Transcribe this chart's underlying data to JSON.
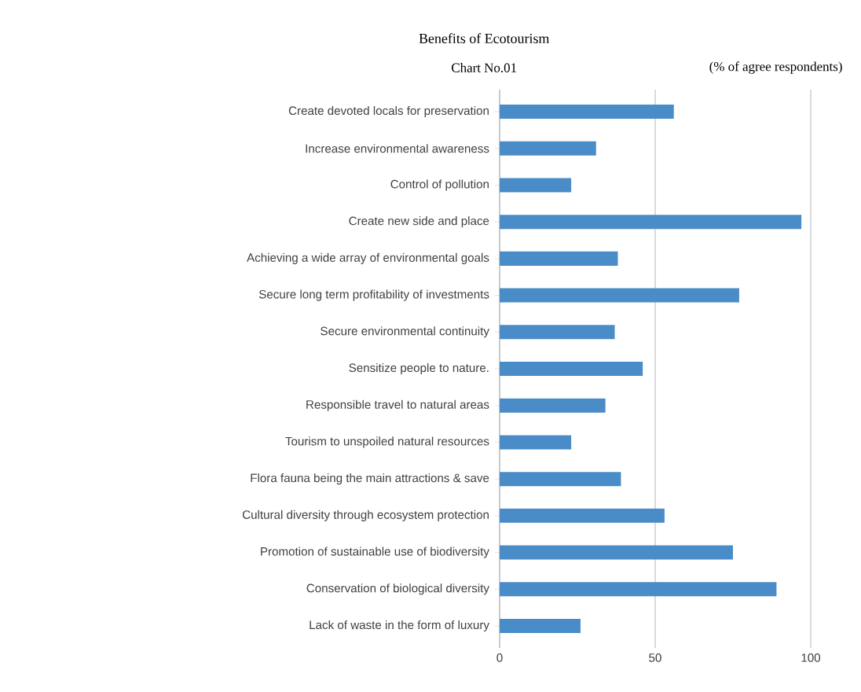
{
  "chart_data": {
    "type": "bar",
    "orientation": "horizontal",
    "title": "Benefits of Ecotourism",
    "subtitle": "Chart No.01",
    "annotations": [
      "(% of agree respondents)"
    ],
    "categories": [
      "Create devoted locals for preservation",
      "Increase environmental awareness",
      "Control of pollution",
      "Create new side and place",
      "Achieving a wide array of environmental goals",
      "Secure long term profitability of investments",
      "Secure environmental continuity",
      "Sensitize people to  nature.",
      "Responsible travel to natural areas",
      "Tourism to unspoiled natural resources",
      "Flora fauna being the main attractions & save",
      "Cultural diversity through ecosystem protection",
      "Promotion of sustainable use of biodiversity",
      "Conservation of biological diversity",
      "Lack of waste in the form of luxury"
    ],
    "values": [
      56,
      31,
      23,
      97,
      38,
      77,
      37,
      46,
      34,
      23,
      39,
      53,
      75,
      89,
      26
    ],
    "color": "#4a8cc8",
    "xlim": [
      0,
      100
    ],
    "xticks": [
      0,
      50,
      100
    ],
    "grid": "x"
  }
}
